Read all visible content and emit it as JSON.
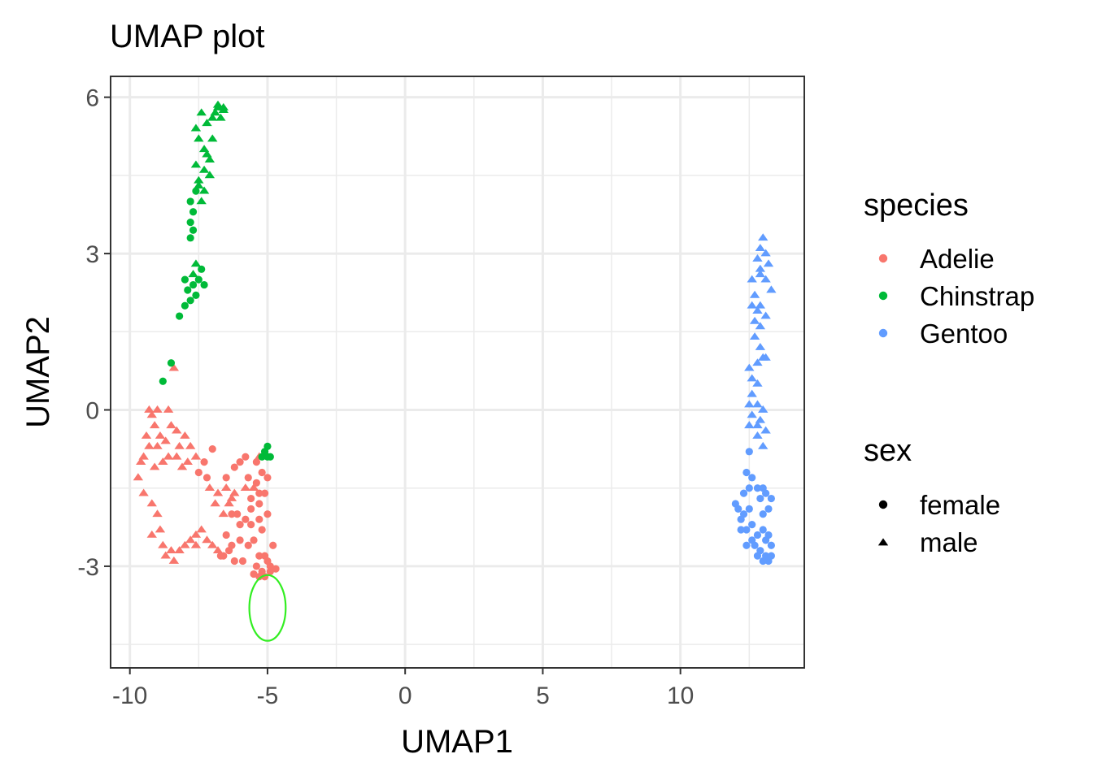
{
  "chart_data": {
    "type": "scatter",
    "title": "UMAP plot",
    "xlabel": "UMAP1",
    "ylabel": "UMAP2",
    "xlim": [
      -10.7,
      14.5
    ],
    "ylim": [
      -4.95,
      6.4
    ],
    "xticks": [
      -10,
      -5,
      0,
      5,
      10
    ],
    "xtick_labels": [
      "-10",
      "-5",
      "0",
      "5",
      "10"
    ],
    "yticks": [
      -3,
      0,
      3,
      6
    ],
    "ytick_labels": [
      "-3",
      "0",
      "3",
      "6"
    ],
    "grid": true,
    "legend": {
      "placement": "right",
      "species_title": "species",
      "species": [
        {
          "name": "Adelie",
          "color": "#F8766D"
        },
        {
          "name": "Chinstrap",
          "color": "#00BA38"
        },
        {
          "name": "Gentoo",
          "color": "#619CFF"
        }
      ],
      "sex_title": "sex",
      "sex": [
        {
          "name": "female",
          "shape": "circle"
        },
        {
          "name": "male",
          "shape": "triangle"
        }
      ]
    },
    "annotation": {
      "type": "ellipse",
      "center": [
        -5.0,
        -3.8
      ],
      "radii": [
        0.66,
        0.63
      ],
      "color": "#33ee22"
    },
    "series": [
      {
        "species": "Adelie",
        "sex": "female",
        "points": [
          [
            -7.0,
            -0.75
          ],
          [
            -7.3,
            -1.0
          ],
          [
            -7.2,
            -1.3
          ],
          [
            -7.5,
            -1.2
          ],
          [
            -6.5,
            -1.3
          ],
          [
            -6.2,
            -1.1
          ],
          [
            -6.0,
            -1.0
          ],
          [
            -5.8,
            -0.9
          ],
          [
            -5.4,
            -1.0
          ],
          [
            -5.2,
            -1.2
          ],
          [
            -5.4,
            -1.4
          ],
          [
            -5.7,
            -1.3
          ],
          [
            -5.3,
            -1.6
          ],
          [
            -5.6,
            -1.7
          ],
          [
            -5.1,
            -1.6
          ],
          [
            -5.3,
            -1.8
          ],
          [
            -5.0,
            -2.0
          ],
          [
            -5.3,
            -2.1
          ],
          [
            -5.2,
            -2.3
          ],
          [
            -5.6,
            -2.2
          ],
          [
            -5.5,
            -2.5
          ],
          [
            -5.7,
            -2.6
          ],
          [
            -6.0,
            -2.2
          ],
          [
            -5.8,
            -2.1
          ],
          [
            -6.3,
            -2.0
          ],
          [
            -6.5,
            -2.4
          ],
          [
            -6.3,
            -2.6
          ],
          [
            -6.0,
            -2.5
          ],
          [
            -6.4,
            -2.7
          ],
          [
            -6.6,
            -2.8
          ],
          [
            -6.2,
            -2.9
          ],
          [
            -5.9,
            -2.9
          ],
          [
            -5.1,
            -2.8
          ],
          [
            -4.8,
            -2.6
          ],
          [
            -5.0,
            -2.9
          ],
          [
            -5.3,
            -2.8
          ],
          [
            -4.9,
            -3.0
          ],
          [
            -5.2,
            -3.1
          ],
          [
            -5.4,
            -3.0
          ],
          [
            -5.5,
            -3.15
          ],
          [
            -5.1,
            -3.2
          ],
          [
            -4.9,
            -3.1
          ],
          [
            -4.7,
            -3.05
          ],
          [
            -5.3,
            -3.2
          ],
          [
            -5.0,
            -1.3
          ],
          [
            -6.7,
            -2.8
          ],
          [
            -5.6,
            -1.9
          ],
          [
            -6.1,
            -2.0
          ]
        ]
      },
      {
        "species": "Adelie",
        "sex": "male",
        "points": [
          [
            -9.2,
            -0.1
          ],
          [
            -9.4,
            -0.5
          ],
          [
            -9.1,
            -0.3
          ],
          [
            -8.9,
            -0.5
          ],
          [
            -9.0,
            -0.7
          ],
          [
            -9.3,
            -0.7
          ],
          [
            -9.5,
            -0.9
          ],
          [
            -8.7,
            -0.6
          ],
          [
            -8.5,
            -0.3
          ],
          [
            -8.3,
            -0.4
          ],
          [
            -8.0,
            -0.5
          ],
          [
            -8.2,
            -0.7
          ],
          [
            -7.8,
            -0.7
          ],
          [
            -7.9,
            -1.0
          ],
          [
            -8.3,
            -0.9
          ],
          [
            -8.6,
            -0.9
          ],
          [
            -8.8,
            -1.0
          ],
          [
            -9.3,
            -0.0
          ],
          [
            -9.0,
            0.0
          ],
          [
            -8.6,
            0.0
          ],
          [
            -9.1,
            -1.1
          ],
          [
            -8.1,
            -1.1
          ],
          [
            -7.6,
            -0.9
          ],
          [
            -9.6,
            -1.0
          ],
          [
            -9.7,
            -1.3
          ],
          [
            -9.5,
            -1.6
          ],
          [
            -9.2,
            -1.8
          ],
          [
            -9.0,
            -2.0
          ],
          [
            -9.2,
            -2.4
          ],
          [
            -8.9,
            -2.3
          ],
          [
            -8.8,
            -2.6
          ],
          [
            -8.5,
            -2.7
          ],
          [
            -8.7,
            -2.8
          ],
          [
            -8.4,
            -2.9
          ],
          [
            -8.2,
            -2.7
          ],
          [
            -8.0,
            -2.6
          ],
          [
            -7.8,
            -2.5
          ],
          [
            -7.6,
            -2.4
          ],
          [
            -7.4,
            -2.3
          ],
          [
            -7.2,
            -2.5
          ],
          [
            -7.0,
            -2.6
          ],
          [
            -6.8,
            -2.7
          ],
          [
            -7.6,
            -2.6
          ],
          [
            -6.6,
            -2.0
          ],
          [
            -6.9,
            -1.8
          ],
          [
            -7.1,
            -1.5
          ],
          [
            -6.8,
            -1.6
          ],
          [
            -6.5,
            -1.5
          ],
          [
            -6.4,
            -1.8
          ],
          [
            -6.2,
            -1.6
          ],
          [
            -5.8,
            -1.5
          ],
          [
            -5.5,
            -1.5
          ],
          [
            -8.4,
            0.8
          ],
          [
            -6.3,
            -1.7
          ],
          [
            -5.3,
            -0.9
          ]
        ]
      },
      {
        "species": "Chinstrap",
        "sex": "female",
        "points": [
          [
            -8.5,
            0.9
          ],
          [
            -8.8,
            0.55
          ],
          [
            -8.2,
            1.8
          ],
          [
            -8.0,
            2.0
          ],
          [
            -7.9,
            2.3
          ],
          [
            -8.0,
            2.5
          ],
          [
            -7.7,
            2.4
          ],
          [
            -7.5,
            2.5
          ],
          [
            -7.3,
            2.4
          ],
          [
            -7.4,
            2.7
          ],
          [
            -7.6,
            2.2
          ],
          [
            -7.8,
            2.1
          ],
          [
            -7.8,
            3.6
          ],
          [
            -7.7,
            3.8
          ],
          [
            -7.8,
            4.0
          ],
          [
            -7.6,
            4.2
          ],
          [
            -7.7,
            3.45
          ],
          [
            -7.8,
            3.3
          ],
          [
            -5.2,
            -0.9
          ],
          [
            -5.0,
            -0.9
          ],
          [
            -5.1,
            -0.8
          ],
          [
            -5.0,
            -0.7
          ],
          [
            -4.9,
            -0.9
          ]
        ]
      },
      {
        "species": "Chinstrap",
        "sex": "male",
        "points": [
          [
            -7.6,
            2.8
          ],
          [
            -7.7,
            2.6
          ],
          [
            -7.4,
            4.0
          ],
          [
            -7.5,
            4.3
          ],
          [
            -7.3,
            4.6
          ],
          [
            -7.1,
            4.8
          ],
          [
            -7.3,
            5.0
          ],
          [
            -7.5,
            5.2
          ],
          [
            -7.6,
            5.4
          ],
          [
            -7.4,
            5.7
          ],
          [
            -7.2,
            5.5
          ],
          [
            -7.0,
            5.6
          ],
          [
            -6.8,
            5.8
          ],
          [
            -6.6,
            5.8
          ],
          [
            -6.7,
            5.6
          ],
          [
            -6.9,
            5.7
          ],
          [
            -7.0,
            5.2
          ],
          [
            -7.2,
            4.9
          ],
          [
            -7.1,
            4.5
          ],
          [
            -7.3,
            4.2
          ],
          [
            -7.5,
            4.4
          ],
          [
            -7.6,
            4.7
          ],
          [
            -6.8,
            5.85
          ],
          [
            -6.6,
            5.75
          ]
        ]
      },
      {
        "species": "Gentoo",
        "sex": "female",
        "points": [
          [
            12.5,
            -0.8
          ],
          [
            12.4,
            -1.2
          ],
          [
            12.5,
            -1.5
          ],
          [
            12.3,
            -1.6
          ],
          [
            12.5,
            -1.9
          ],
          [
            12.3,
            -2.0
          ],
          [
            12.1,
            -1.9
          ],
          [
            12.2,
            -2.1
          ],
          [
            12.0,
            -1.8
          ],
          [
            12.6,
            -2.2
          ],
          [
            12.4,
            -2.3
          ],
          [
            12.2,
            -2.3
          ],
          [
            12.6,
            -1.3
          ],
          [
            12.8,
            -1.5
          ],
          [
            13.0,
            -1.5
          ],
          [
            13.1,
            -1.6
          ],
          [
            13.3,
            -1.7
          ],
          [
            13.2,
            -1.9
          ],
          [
            13.0,
            -2.0
          ],
          [
            12.9,
            -1.7
          ],
          [
            13.0,
            -2.3
          ],
          [
            13.2,
            -2.4
          ],
          [
            13.1,
            -2.5
          ],
          [
            12.8,
            -2.4
          ],
          [
            12.7,
            -2.6
          ],
          [
            12.9,
            -2.7
          ],
          [
            13.1,
            -2.8
          ],
          [
            13.2,
            -2.9
          ],
          [
            13.0,
            -2.9
          ],
          [
            12.8,
            -2.8
          ],
          [
            13.3,
            -2.6
          ],
          [
            13.3,
            -2.8
          ],
          [
            12.6,
            -2.5
          ],
          [
            12.4,
            -2.6
          ]
        ]
      },
      {
        "species": "Gentoo",
        "sex": "male",
        "points": [
          [
            13.0,
            3.3
          ],
          [
            12.9,
            3.1
          ],
          [
            13.1,
            3.0
          ],
          [
            12.8,
            2.9
          ],
          [
            13.2,
            2.8
          ],
          [
            12.9,
            2.7
          ],
          [
            12.6,
            2.5
          ],
          [
            12.9,
            2.6
          ],
          [
            13.1,
            2.5
          ],
          [
            13.3,
            2.3
          ],
          [
            12.7,
            2.2
          ],
          [
            12.9,
            2.0
          ],
          [
            12.6,
            2.0
          ],
          [
            12.8,
            1.9
          ],
          [
            12.7,
            1.7
          ],
          [
            12.9,
            1.6
          ],
          [
            13.1,
            1.8
          ],
          [
            12.7,
            1.4
          ],
          [
            12.9,
            1.2
          ],
          [
            13.0,
            1.0
          ],
          [
            12.8,
            0.9
          ],
          [
            13.1,
            1.0
          ],
          [
            12.5,
            0.8
          ],
          [
            12.6,
            0.6
          ],
          [
            12.8,
            0.5
          ],
          [
            12.6,
            0.3
          ],
          [
            12.8,
            0.1
          ],
          [
            12.5,
            0.1
          ],
          [
            12.6,
            -0.1
          ],
          [
            12.8,
            -0.3
          ],
          [
            13.0,
            0.0
          ],
          [
            12.8,
            -0.5
          ],
          [
            13.1,
            -0.4
          ],
          [
            12.9,
            -0.2
          ],
          [
            12.5,
            -0.3
          ],
          [
            13.0,
            -0.7
          ]
        ]
      }
    ]
  }
}
